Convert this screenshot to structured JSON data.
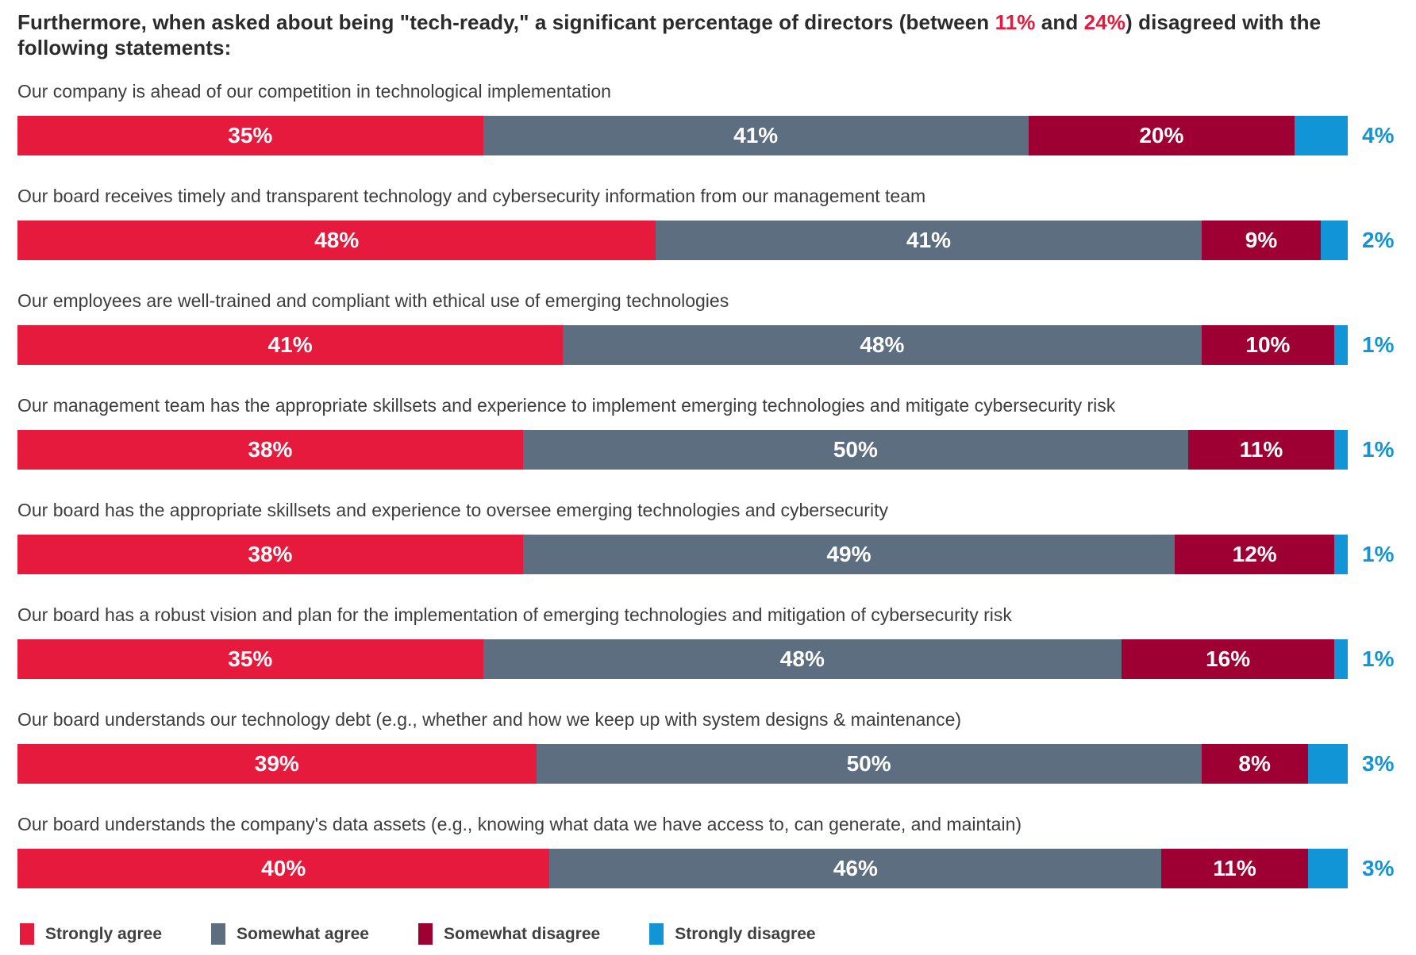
{
  "title": {
    "part1": "Furthermore, when asked about being \"tech-ready,\" a significant percentage of directors (between ",
    "pct_low": "11%",
    "part2": " and ",
    "pct_high": "24%",
    "part3": ") disagreed with the following statements:"
  },
  "colors": {
    "strongly_agree": "#E61A3C",
    "somewhat_agree": "#5C6E7F",
    "somewhat_disagree": "#9E0033",
    "strongly_disagree": "#1295D6",
    "title_text": "#2b2b2b",
    "statement_text": "#3d3d3d",
    "highlight_red": "#E61A3C"
  },
  "chart_data": {
    "type": "bar",
    "orientation": "horizontal-stacked",
    "unit": "%",
    "xlim": [
      0,
      100
    ],
    "grid": false,
    "legend_position": "bottom",
    "series_names": [
      "Strongly agree",
      "Somewhat agree",
      "Somewhat disagree",
      "Strongly disagree"
    ],
    "rows": [
      {
        "statement": "Our company is ahead of our competition in technological implementation",
        "values": [
          35,
          41,
          20,
          4
        ]
      },
      {
        "statement": "Our board receives timely and transparent technology and cybersecurity information from our management team",
        "values": [
          48,
          41,
          9,
          2
        ]
      },
      {
        "statement": "Our employees are well-trained and compliant with ethical use of emerging technologies",
        "values": [
          41,
          48,
          10,
          1
        ]
      },
      {
        "statement": "Our management team has the appropriate skillsets and experience to implement emerging technologies and mitigate cybersecurity risk",
        "values": [
          38,
          50,
          11,
          1
        ]
      },
      {
        "statement": "Our board has the appropriate skillsets and experience to oversee emerging technologies and cybersecurity",
        "values": [
          38,
          49,
          12,
          1
        ]
      },
      {
        "statement": "Our board has a robust vision and plan for the implementation of emerging technologies and mitigation of cybersecurity risk",
        "values": [
          35,
          48,
          16,
          1
        ]
      },
      {
        "statement": "Our board understands our technology debt (e.g., whether and how we keep up with system designs & maintenance)",
        "values": [
          39,
          50,
          8,
          3
        ]
      },
      {
        "statement": "Our board understands the company's data assets (e.g., knowing what data we have access to, can generate, and maintain)",
        "values": [
          40,
          46,
          11,
          3
        ]
      }
    ],
    "legend": [
      {
        "label": "Strongly agree",
        "color_key": "strongly_agree"
      },
      {
        "label": "Somewhat agree",
        "color_key": "somewhat_agree"
      },
      {
        "label": "Somewhat disagree",
        "color_key": "somewhat_disagree"
      },
      {
        "label": "Strongly disagree",
        "color_key": "strongly_disagree"
      }
    ]
  }
}
